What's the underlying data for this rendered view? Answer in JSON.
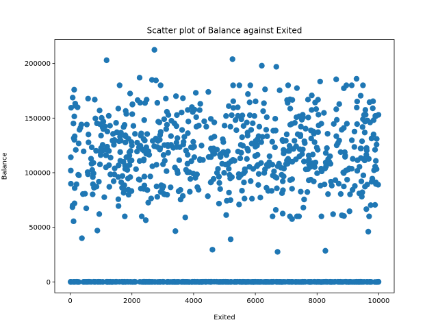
{
  "chart_data": {
    "type": "scatter",
    "title": "Scatter plot of Balance against Exited",
    "xlabel": "Exited",
    "ylabel": "Balance",
    "xlim": [
      -500,
      10500
    ],
    "ylim": [
      -10000,
      222000
    ],
    "xticks": [
      0,
      2000,
      4000,
      6000,
      8000,
      10000
    ],
    "xtick_labels": [
      "0",
      "2000",
      "4000",
      "6000",
      "8000",
      "10000"
    ],
    "yticks": [
      0,
      50000,
      100000,
      150000,
      200000
    ],
    "ytick_labels": [
      "0",
      "50000",
      "100000",
      "150000",
      "200000"
    ],
    "grid": false,
    "legend": "none",
    "marker_color": "#1f77b4",
    "notable_points": [
      {
        "x": 1180,
        "y": 203000
      },
      {
        "x": 2730,
        "y": 212500
      },
      {
        "x": 5260,
        "y": 204000
      },
      {
        "x": 6210,
        "y": 198000
      },
      {
        "x": 6680,
        "y": 197000
      },
      {
        "x": 2250,
        "y": 187000
      },
      {
        "x": 2650,
        "y": 185000
      },
      {
        "x": 2780,
        "y": 184500
      },
      {
        "x": 8100,
        "y": 183500
      },
      {
        "x": 8620,
        "y": 185500
      },
      {
        "x": 9280,
        "y": 186000
      },
      {
        "x": 5200,
        "y": 39000
      },
      {
        "x": 380,
        "y": 40000
      },
      {
        "x": 880,
        "y": 47000
      },
      {
        "x": 3410,
        "y": 46500
      },
      {
        "x": 9660,
        "y": 46000
      },
      {
        "x": 4610,
        "y": 29500
      },
      {
        "x": 6720,
        "y": 27500
      },
      {
        "x": 8270,
        "y": 28500
      },
      {
        "x": 7190,
        "y": 57500
      },
      {
        "x": 2450,
        "y": 56500
      },
      {
        "x": 3730,
        "y": 59000
      },
      {
        "x": 8520,
        "y": 62000
      },
      {
        "x": 5760,
        "y": 172000
      },
      {
        "x": 30,
        "y": 159500
      },
      {
        "x": 130,
        "y": 176000
      },
      {
        "x": 20,
        "y": 102000
      },
      {
        "x": 110,
        "y": 55500
      },
      {
        "x": 80,
        "y": 70000
      },
      {
        "x": 9990,
        "y": 153000
      },
      {
        "x": 9980,
        "y": 89000
      },
      {
        "x": 9880,
        "y": 70500
      }
    ],
    "generated_points": {
      "zero_balance_band": {
        "count": 360,
        "x_range": [
          0,
          10000
        ],
        "y_value": 0,
        "y_jitter": 300
      },
      "main_cluster": {
        "count": 640,
        "x_range": [
          0,
          10000
        ],
        "y_mean": 120000,
        "y_sd": 28000,
        "y_range": [
          60000,
          180000
        ]
      }
    }
  }
}
